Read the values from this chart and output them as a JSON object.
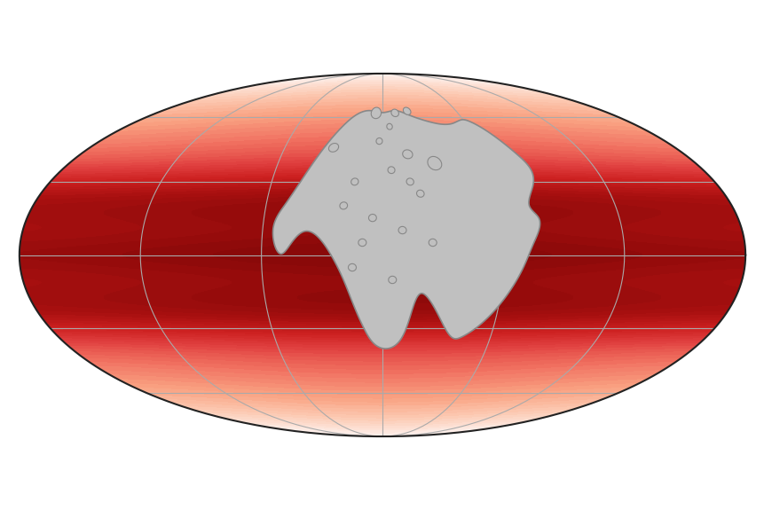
{
  "figsize": [
    8.62,
    5.75
  ],
  "dpi": 100,
  "background_color": "#ffffff",
  "globe_bg": "#ffffff",
  "temp_colors": [
    "#ffffff",
    "#fde8e0",
    "#fcc8b0",
    "#f9a080",
    "#f07060",
    "#e04040",
    "#cc2020",
    "#aa1010",
    "#880808"
  ],
  "grid_color": "#aaaaaa",
  "land_color": "#c0c0c0",
  "land_edge_color": "#888888",
  "outline_color": "#222222",
  "grid_linewidth": 0.8,
  "land_linewidth": 1.2
}
